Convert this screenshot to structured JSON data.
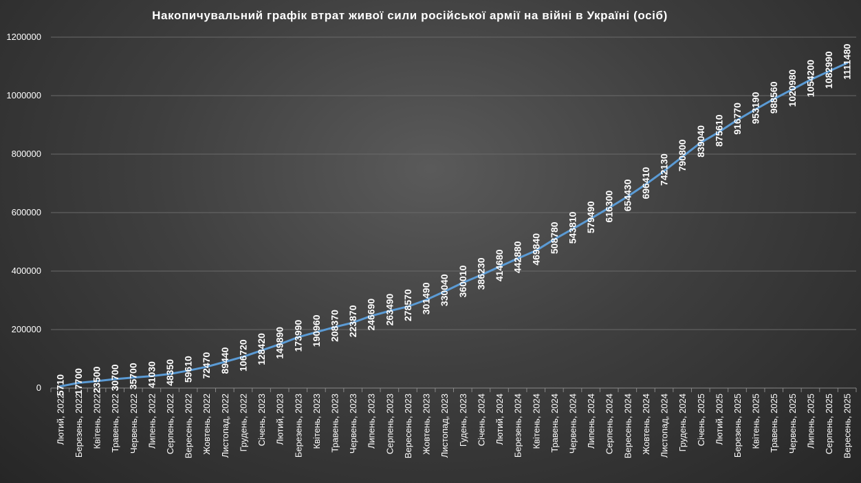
{
  "chart_data": {
    "type": "line",
    "title": "Накопичувальний графік втрат живої сили російської армії на війні в Україні (осіб)",
    "xlabel": "",
    "ylabel": "",
    "ylim": [
      0,
      1200000
    ],
    "yticks": [
      0,
      200000,
      400000,
      600000,
      800000,
      1000000,
      1200000
    ],
    "grid": true,
    "legend": "none",
    "series_color": "#5b9bd5",
    "categories": [
      "Лютий, 2022",
      "Березень, 2022",
      "Квітень, 2022",
      "Травень, 2022",
      "Червень, 2022",
      "Липень, 2022",
      "Серпень, 2022",
      "Вересень, 2022",
      "Жовтень, 2022",
      "Листопад, 2022",
      "Грудень, 2022",
      "Січень, 2023",
      "Лютий, 2023",
      "Березень, 2023",
      "Квітень, 2023",
      "Травень, 2023",
      "Червень, 2023",
      "Липень, 2023",
      "Серпень, 2023",
      "Вересень, 2023",
      "Жовтень, 2023",
      "Листопад, 2023",
      "Гудень, 2023",
      "Січень, 2024",
      "Лютий, 2024",
      "Березень, 2024",
      "Квітень, 2024",
      "Травень, 2024",
      "Червень, 2024",
      "Липень, 2024",
      "Серпень, 2024",
      "Вересень, 2024",
      "Жовтень, 2024",
      "Листопад, 2024",
      "Грудень, 2024",
      "Січень, 2025",
      "Лютий, 2025",
      "Березень, 2025",
      "Квітень, 2025",
      "Травень, 2025",
      "Червень, 2025",
      "Липень, 2025",
      "Серпень, 2025",
      "Вересень, 2025"
    ],
    "values": [
      5710,
      17700,
      23500,
      30700,
      35700,
      41030,
      48350,
      59610,
      72470,
      89440,
      106720,
      128420,
      149890,
      173990,
      190960,
      208370,
      223870,
      246690,
      263490,
      278570,
      301490,
      330040,
      360010,
      386230,
      414680,
      442880,
      469840,
      508780,
      543810,
      579490,
      616300,
      654430,
      696410,
      742130,
      790800,
      839040,
      875610,
      916770,
      953190,
      988560,
      1020980,
      1054200,
      1082990,
      1111480
    ]
  }
}
